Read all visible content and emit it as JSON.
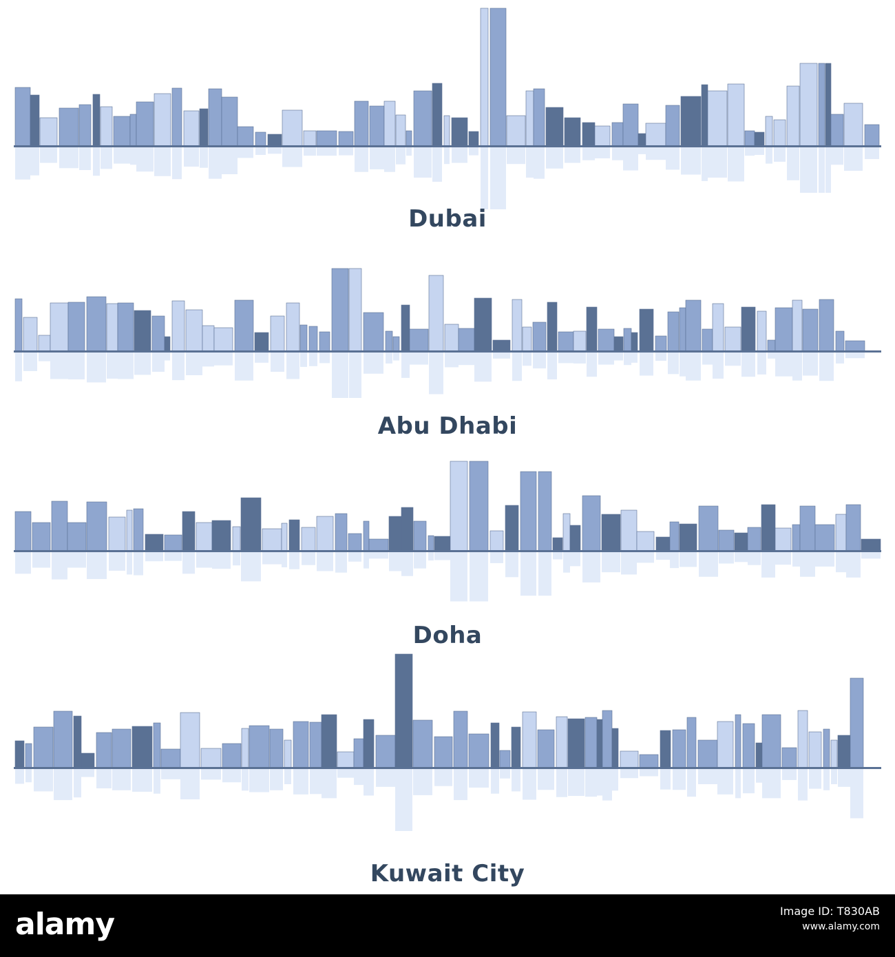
{
  "colors": {
    "skyline_dark": "#5a7194",
    "skyline_mid": "#8fa6cf",
    "skyline_light": "#c6d5f0",
    "reflection": "#dbe6f7",
    "label": "#33475f",
    "footer_bg": "#000000"
  },
  "panels": [
    {
      "id": "dubai",
      "label": "Dubai",
      "icon": "dubai-skyline-icon"
    },
    {
      "id": "abu_dhabi",
      "label": "Abu Dhabi",
      "icon": "abu-dhabi-skyline-icon"
    },
    {
      "id": "doha",
      "label": "Doha",
      "icon": "doha-skyline-icon"
    },
    {
      "id": "kuwait",
      "label": "Kuwait City",
      "icon": "kuwait-city-skyline-icon"
    }
  ],
  "footer": {
    "brand": "alamy",
    "image_id_label": "Image ID: T830AB",
    "website": "www.alamy.com"
  }
}
